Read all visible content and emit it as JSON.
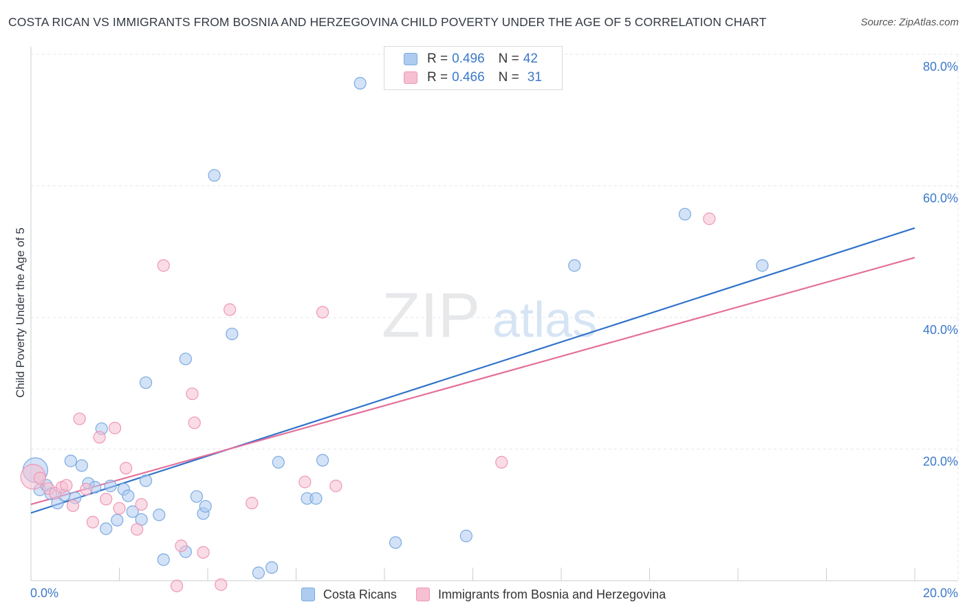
{
  "colors": {
    "blue_fill": "#aecbf0",
    "blue_stroke": "#7aaae0",
    "blue_line": "#2f72c9",
    "pink_fill": "#f6c0d2",
    "pink_stroke": "#ee96b5",
    "pink_line": "#e46f9a",
    "tick_label": "#3b78c9",
    "grid": "#e3e5e9"
  },
  "header": {
    "title": "COSTA RICAN VS IMMIGRANTS FROM BOSNIA AND HERZEGOVINA CHILD POVERTY UNDER THE AGE OF 5 CORRELATION CHART",
    "source": "Source: ZipAtlas.com"
  },
  "watermark": {
    "zip": "ZIP",
    "atlas": "atlas"
  },
  "legend_top": {
    "rows": [
      {
        "r_label": "R = ",
        "r_value": "0.496",
        "n_label": "N = ",
        "n_value": "42"
      },
      {
        "r_label": "R = ",
        "r_value": "0.466",
        "n_label": "N = ",
        "n_value": "31"
      }
    ]
  },
  "chart_data": {
    "type": "scatter",
    "title": "COSTA RICAN VS IMMIGRANTS FROM BOSNIA AND HERZEGOVINA CHILD POVERTY UNDER THE AGE OF 5 CORRELATION CHART",
    "xlabel": "",
    "ylabel": "Child Poverty Under the Age of 5",
    "xlim": [
      0,
      20
    ],
    "ylim": [
      0,
      80
    ],
    "x_tick_labels": [
      "0.0%",
      "20.0%"
    ],
    "y_ticks": [
      20,
      40,
      60,
      80
    ],
    "y_tick_labels": [
      "20.0%",
      "40.0%",
      "60.0%",
      "80.0%"
    ],
    "grid": true,
    "legend_position": "bottom",
    "series": [
      {
        "name": "Costa Ricans",
        "color": "blue",
        "r": 0.496,
        "n": 42,
        "trend": {
          "x": [
            0,
            20
          ],
          "y": [
            10.3,
            53.6
          ]
        },
        "points": [
          {
            "x": 0.1,
            "y": 16.8,
            "big": true
          },
          {
            "x": 0.2,
            "y": 13.8
          },
          {
            "x": 0.35,
            "y": 14.5
          },
          {
            "x": 0.45,
            "y": 13.2
          },
          {
            "x": 0.6,
            "y": 11.8
          },
          {
            "x": 0.75,
            "y": 13.0
          },
          {
            "x": 0.9,
            "y": 18.2
          },
          {
            "x": 1.0,
            "y": 12.6
          },
          {
            "x": 1.15,
            "y": 17.5
          },
          {
            "x": 1.3,
            "y": 14.8
          },
          {
            "x": 1.45,
            "y": 14.2
          },
          {
            "x": 1.6,
            "y": 23.1
          },
          {
            "x": 1.7,
            "y": 7.9
          },
          {
            "x": 1.8,
            "y": 14.4
          },
          {
            "x": 1.95,
            "y": 9.2
          },
          {
            "x": 2.1,
            "y": 13.9
          },
          {
            "x": 2.2,
            "y": 12.9
          },
          {
            "x": 2.3,
            "y": 10.5
          },
          {
            "x": 2.5,
            "y": 9.3
          },
          {
            "x": 2.6,
            "y": 15.2
          },
          {
            "x": 2.6,
            "y": 30.1
          },
          {
            "x": 2.9,
            "y": 10.0
          },
          {
            "x": 3.0,
            "y": 3.2
          },
          {
            "x": 3.5,
            "y": 33.7
          },
          {
            "x": 3.5,
            "y": 4.4
          },
          {
            "x": 3.75,
            "y": 12.8
          },
          {
            "x": 3.9,
            "y": 10.2
          },
          {
            "x": 3.95,
            "y": 11.3
          },
          {
            "x": 4.15,
            "y": 61.6
          },
          {
            "x": 4.55,
            "y": 37.5
          },
          {
            "x": 5.15,
            "y": 1.2
          },
          {
            "x": 5.45,
            "y": 2.0
          },
          {
            "x": 5.6,
            "y": 18.0
          },
          {
            "x": 6.25,
            "y": 12.5
          },
          {
            "x": 6.45,
            "y": 12.5
          },
          {
            "x": 6.6,
            "y": 18.3
          },
          {
            "x": 7.45,
            "y": 75.6
          },
          {
            "x": 8.25,
            "y": 5.8
          },
          {
            "x": 9.85,
            "y": 6.8
          },
          {
            "x": 12.3,
            "y": 47.9
          },
          {
            "x": 14.8,
            "y": 55.7
          },
          {
            "x": 16.55,
            "y": 47.9
          }
        ]
      },
      {
        "name": "Immigrants from Bosnia and Herzegovina",
        "color": "pink",
        "r": 0.466,
        "n": 31,
        "trend": {
          "x": [
            0,
            20
          ],
          "y": [
            11.6,
            49.1
          ]
        },
        "points": [
          {
            "x": 0.05,
            "y": 15.8,
            "big": true
          },
          {
            "x": 0.2,
            "y": 15.6
          },
          {
            "x": 0.4,
            "y": 14.0
          },
          {
            "x": 0.55,
            "y": 13.3
          },
          {
            "x": 0.7,
            "y": 14.2
          },
          {
            "x": 0.8,
            "y": 14.5
          },
          {
            "x": 0.95,
            "y": 11.4
          },
          {
            "x": 1.1,
            "y": 24.6
          },
          {
            "x": 1.25,
            "y": 13.9
          },
          {
            "x": 1.4,
            "y": 8.9
          },
          {
            "x": 1.55,
            "y": 21.8
          },
          {
            "x": 1.7,
            "y": 12.4
          },
          {
            "x": 1.9,
            "y": 23.2
          },
          {
            "x": 2.15,
            "y": 17.1
          },
          {
            "x": 2.0,
            "y": 11.0
          },
          {
            "x": 2.4,
            "y": 7.8
          },
          {
            "x": 2.5,
            "y": 11.6
          },
          {
            "x": 3.0,
            "y": 47.9
          },
          {
            "x": 3.3,
            "y": -0.8
          },
          {
            "x": 3.4,
            "y": 5.3
          },
          {
            "x": 3.65,
            "y": 28.4
          },
          {
            "x": 3.7,
            "y": 24.0
          },
          {
            "x": 3.9,
            "y": 4.3
          },
          {
            "x": 4.3,
            "y": -0.6
          },
          {
            "x": 4.5,
            "y": 41.2
          },
          {
            "x": 5.0,
            "y": 11.8
          },
          {
            "x": 6.2,
            "y": 15.0
          },
          {
            "x": 6.6,
            "y": 40.8
          },
          {
            "x": 6.9,
            "y": 14.4
          },
          {
            "x": 10.65,
            "y": 18.0
          },
          {
            "x": 15.35,
            "y": 55.0
          }
        ]
      }
    ]
  }
}
